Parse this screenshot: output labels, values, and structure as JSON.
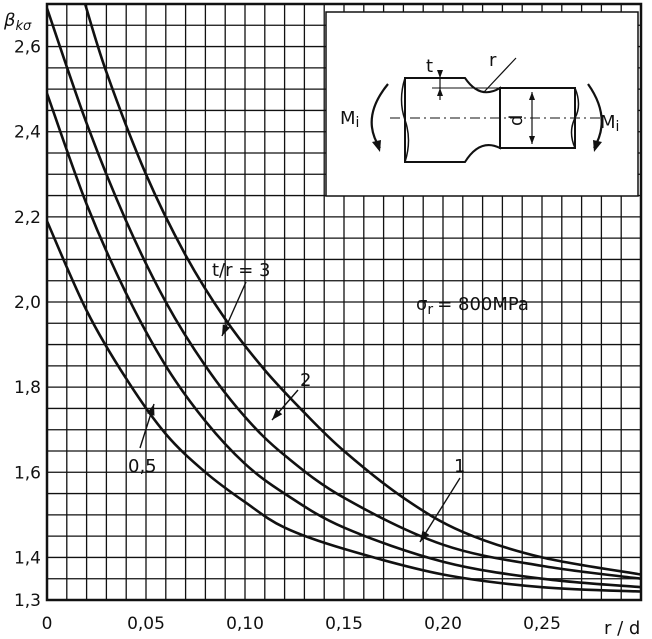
{
  "chart_data": {
    "type": "line",
    "ylabel": "β",
    "ylabel_sub": "kσ",
    "xlabel": "r / d",
    "xlim": [
      0,
      0.3
    ],
    "ylim": [
      1.3,
      2.7
    ],
    "xticks": [
      0,
      0.05,
      0.1,
      0.15,
      0.2,
      0.25
    ],
    "xtick_labels": [
      "0",
      "0,05",
      "0,10",
      "0,15",
      "0,20",
      "0,25"
    ],
    "yticks": [
      1.3,
      1.4,
      1.6,
      1.8,
      2.0,
      2.2,
      2.4,
      2.6
    ],
    "ytick_labels": [
      "1,3",
      "1,4",
      "1,6",
      "1,8",
      "2,0",
      "2,2",
      "2,4",
      "2,6"
    ],
    "grid": true,
    "annotation_stress": "σr = 800MPa",
    "annotation_stress_symbol": "σ",
    "annotation_stress_sub": "r",
    "annotation_stress_value": "= 800MPa",
    "series": [
      {
        "name": "0,5",
        "x": [
          0,
          0.02,
          0.04,
          0.06,
          0.08,
          0.1,
          0.12,
          0.15,
          0.2,
          0.25,
          0.3
        ],
        "y": [
          2.19,
          1.98,
          1.82,
          1.69,
          1.6,
          1.53,
          1.47,
          1.42,
          1.36,
          1.33,
          1.32
        ]
      },
      {
        "name": "1",
        "x": [
          0,
          0.02,
          0.04,
          0.06,
          0.08,
          0.1,
          0.12,
          0.15,
          0.2,
          0.25,
          0.3
        ],
        "y": [
          2.49,
          2.23,
          2.02,
          1.85,
          1.72,
          1.62,
          1.55,
          1.47,
          1.39,
          1.35,
          1.33
        ]
      },
      {
        "name": "2",
        "x": [
          0,
          0.02,
          0.04,
          0.06,
          0.08,
          0.1,
          0.12,
          0.15,
          0.2,
          0.25,
          0.3
        ],
        "y": [
          2.69,
          2.42,
          2.19,
          2.0,
          1.85,
          1.73,
          1.64,
          1.54,
          1.43,
          1.38,
          1.35
        ]
      },
      {
        "name": "t/r = 3",
        "x": [
          0.018,
          0.03,
          0.05,
          0.07,
          0.09,
          0.11,
          0.13,
          0.15,
          0.18,
          0.21,
          0.25,
          0.3
        ],
        "y": [
          2.72,
          2.54,
          2.3,
          2.11,
          1.96,
          1.84,
          1.74,
          1.65,
          1.54,
          1.46,
          1.4,
          1.36
        ]
      }
    ],
    "series_labels": [
      {
        "text": "t/r = 3",
        "series": 3
      },
      {
        "text": "2",
        "series": 2
      },
      {
        "text": "1",
        "series": 1
      },
      {
        "text": "0,5",
        "series": 0
      }
    ]
  },
  "inset": {
    "moment_left": "M",
    "moment_left_sub": "i",
    "moment_right": "M",
    "moment_right_sub": "i",
    "dim_t": "t",
    "dim_r": "r",
    "dim_d": "d"
  }
}
